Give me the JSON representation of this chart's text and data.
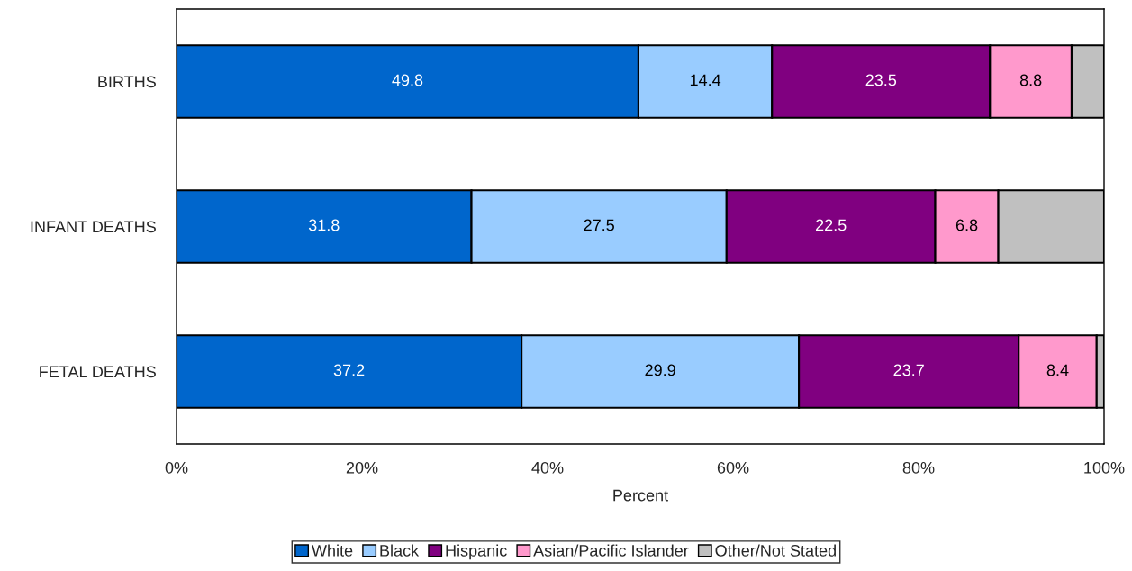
{
  "chart_data": {
    "type": "bar",
    "orientation": "horizontal",
    "stacked": true,
    "categories": [
      "BIRTHS",
      "INFANT DEATHS",
      "FETAL DEATHS"
    ],
    "xlabel": "Percent",
    "xlim": [
      0,
      100
    ],
    "xticks": [
      {
        "value": 0,
        "label": "0%"
      },
      {
        "value": 20,
        "label": "20%"
      },
      {
        "value": 40,
        "label": "40%"
      },
      {
        "value": 60,
        "label": "60%"
      },
      {
        "value": 80,
        "label": "80%"
      },
      {
        "value": 100,
        "label": "100%"
      }
    ],
    "series": [
      {
        "name": "White",
        "color": "#0066cc",
        "values": [
          49.8,
          31.8,
          37.2
        ],
        "value_labels": [
          "49.8",
          "31.8",
          "37.2"
        ]
      },
      {
        "name": "Black",
        "color": "#99ccff",
        "values": [
          14.4,
          27.5,
          29.9
        ],
        "value_labels": [
          "14.4",
          "27.5",
          "29.9"
        ]
      },
      {
        "name": "Hispanic",
        "color": "#800080",
        "values": [
          23.5,
          22.5,
          23.7
        ],
        "value_labels": [
          "23.5",
          "22.5",
          "23.7"
        ]
      },
      {
        "name": "Asian/Pacific Islander",
        "color": "#ff99cc",
        "values": [
          8.8,
          6.8,
          8.4
        ],
        "value_labels": [
          "8.8",
          "6.8",
          "8.4"
        ]
      },
      {
        "name": "Other/Not Stated",
        "color": "#c0c0c0",
        "values": [
          3.5,
          11.4,
          0.8
        ],
        "value_labels": [
          null,
          null,
          null
        ]
      }
    ],
    "legend": "bottom",
    "grid": false
  }
}
